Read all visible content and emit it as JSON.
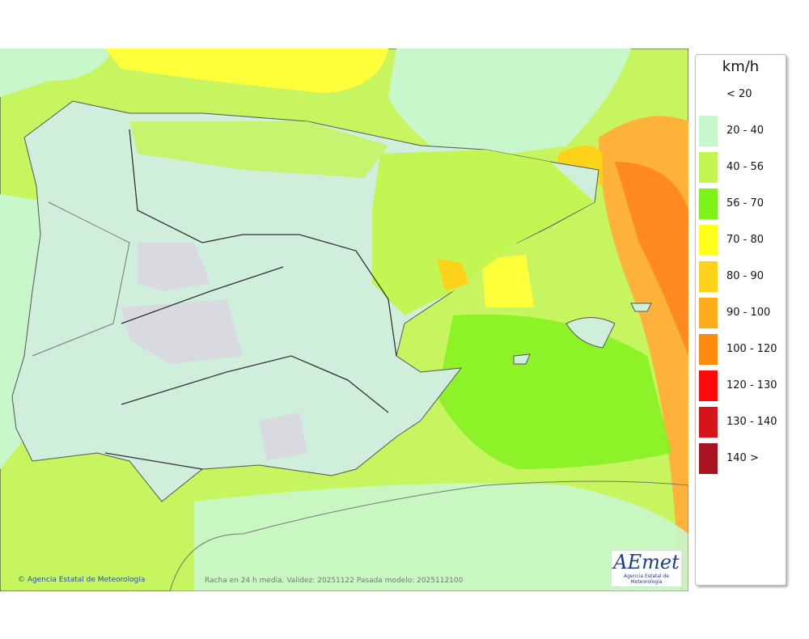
{
  "legend": {
    "unit": "km/h",
    "items": [
      {
        "label": "< 20"
      },
      {
        "label": "20 - 40",
        "color": "#c8f7cc"
      },
      {
        "label": "40 - 56",
        "color": "#c3f553"
      },
      {
        "label": "56 - 70",
        "color": "#7ef31a"
      },
      {
        "label": "70 - 80",
        "color": "#ffff1a"
      },
      {
        "label": "80 - 90",
        "color": "#ffd21a"
      },
      {
        "label": "90 - 100",
        "color": "#ffac1a"
      },
      {
        "label": "100 - 120",
        "color": "#ff8a10"
      },
      {
        "label": "120 - 130",
        "color": "#ff0a0a"
      },
      {
        "label": "130 - 140",
        "color": "#d6141a"
      },
      {
        "label": "140 >",
        "color": "#a8141f"
      }
    ]
  },
  "footer": {
    "credit": "© Agencia Estatal de Meteorología",
    "caption": "Racha en 24 h media. Validez: 20251122 Pasada modelo: 2025112100"
  },
  "logo": {
    "title": "AEmet",
    "subtitle": "Agencia Estatal de Meteorología"
  }
}
